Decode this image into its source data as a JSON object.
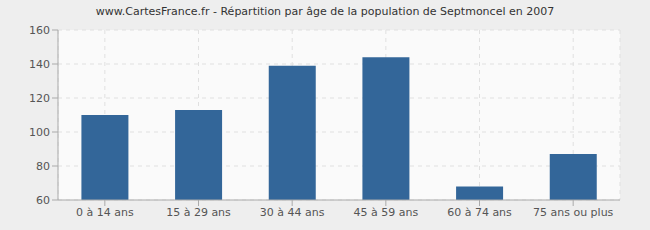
{
  "chart_data": {
    "type": "bar",
    "title": "www.CartesFrance.fr - Répartition par âge de la population de Septmoncel en 2007",
    "categories": [
      "0 à 14 ans",
      "15 à 29 ans",
      "30 à 44 ans",
      "45 à 59 ans",
      "60 à 74 ans",
      "75 ans ou plus"
    ],
    "values": [
      110,
      113,
      139,
      144,
      68,
      87
    ],
    "color": "#336699",
    "ylim": [
      60,
      160
    ],
    "yticks": [
      60,
      80,
      100,
      120,
      140,
      160
    ],
    "grid": true
  }
}
